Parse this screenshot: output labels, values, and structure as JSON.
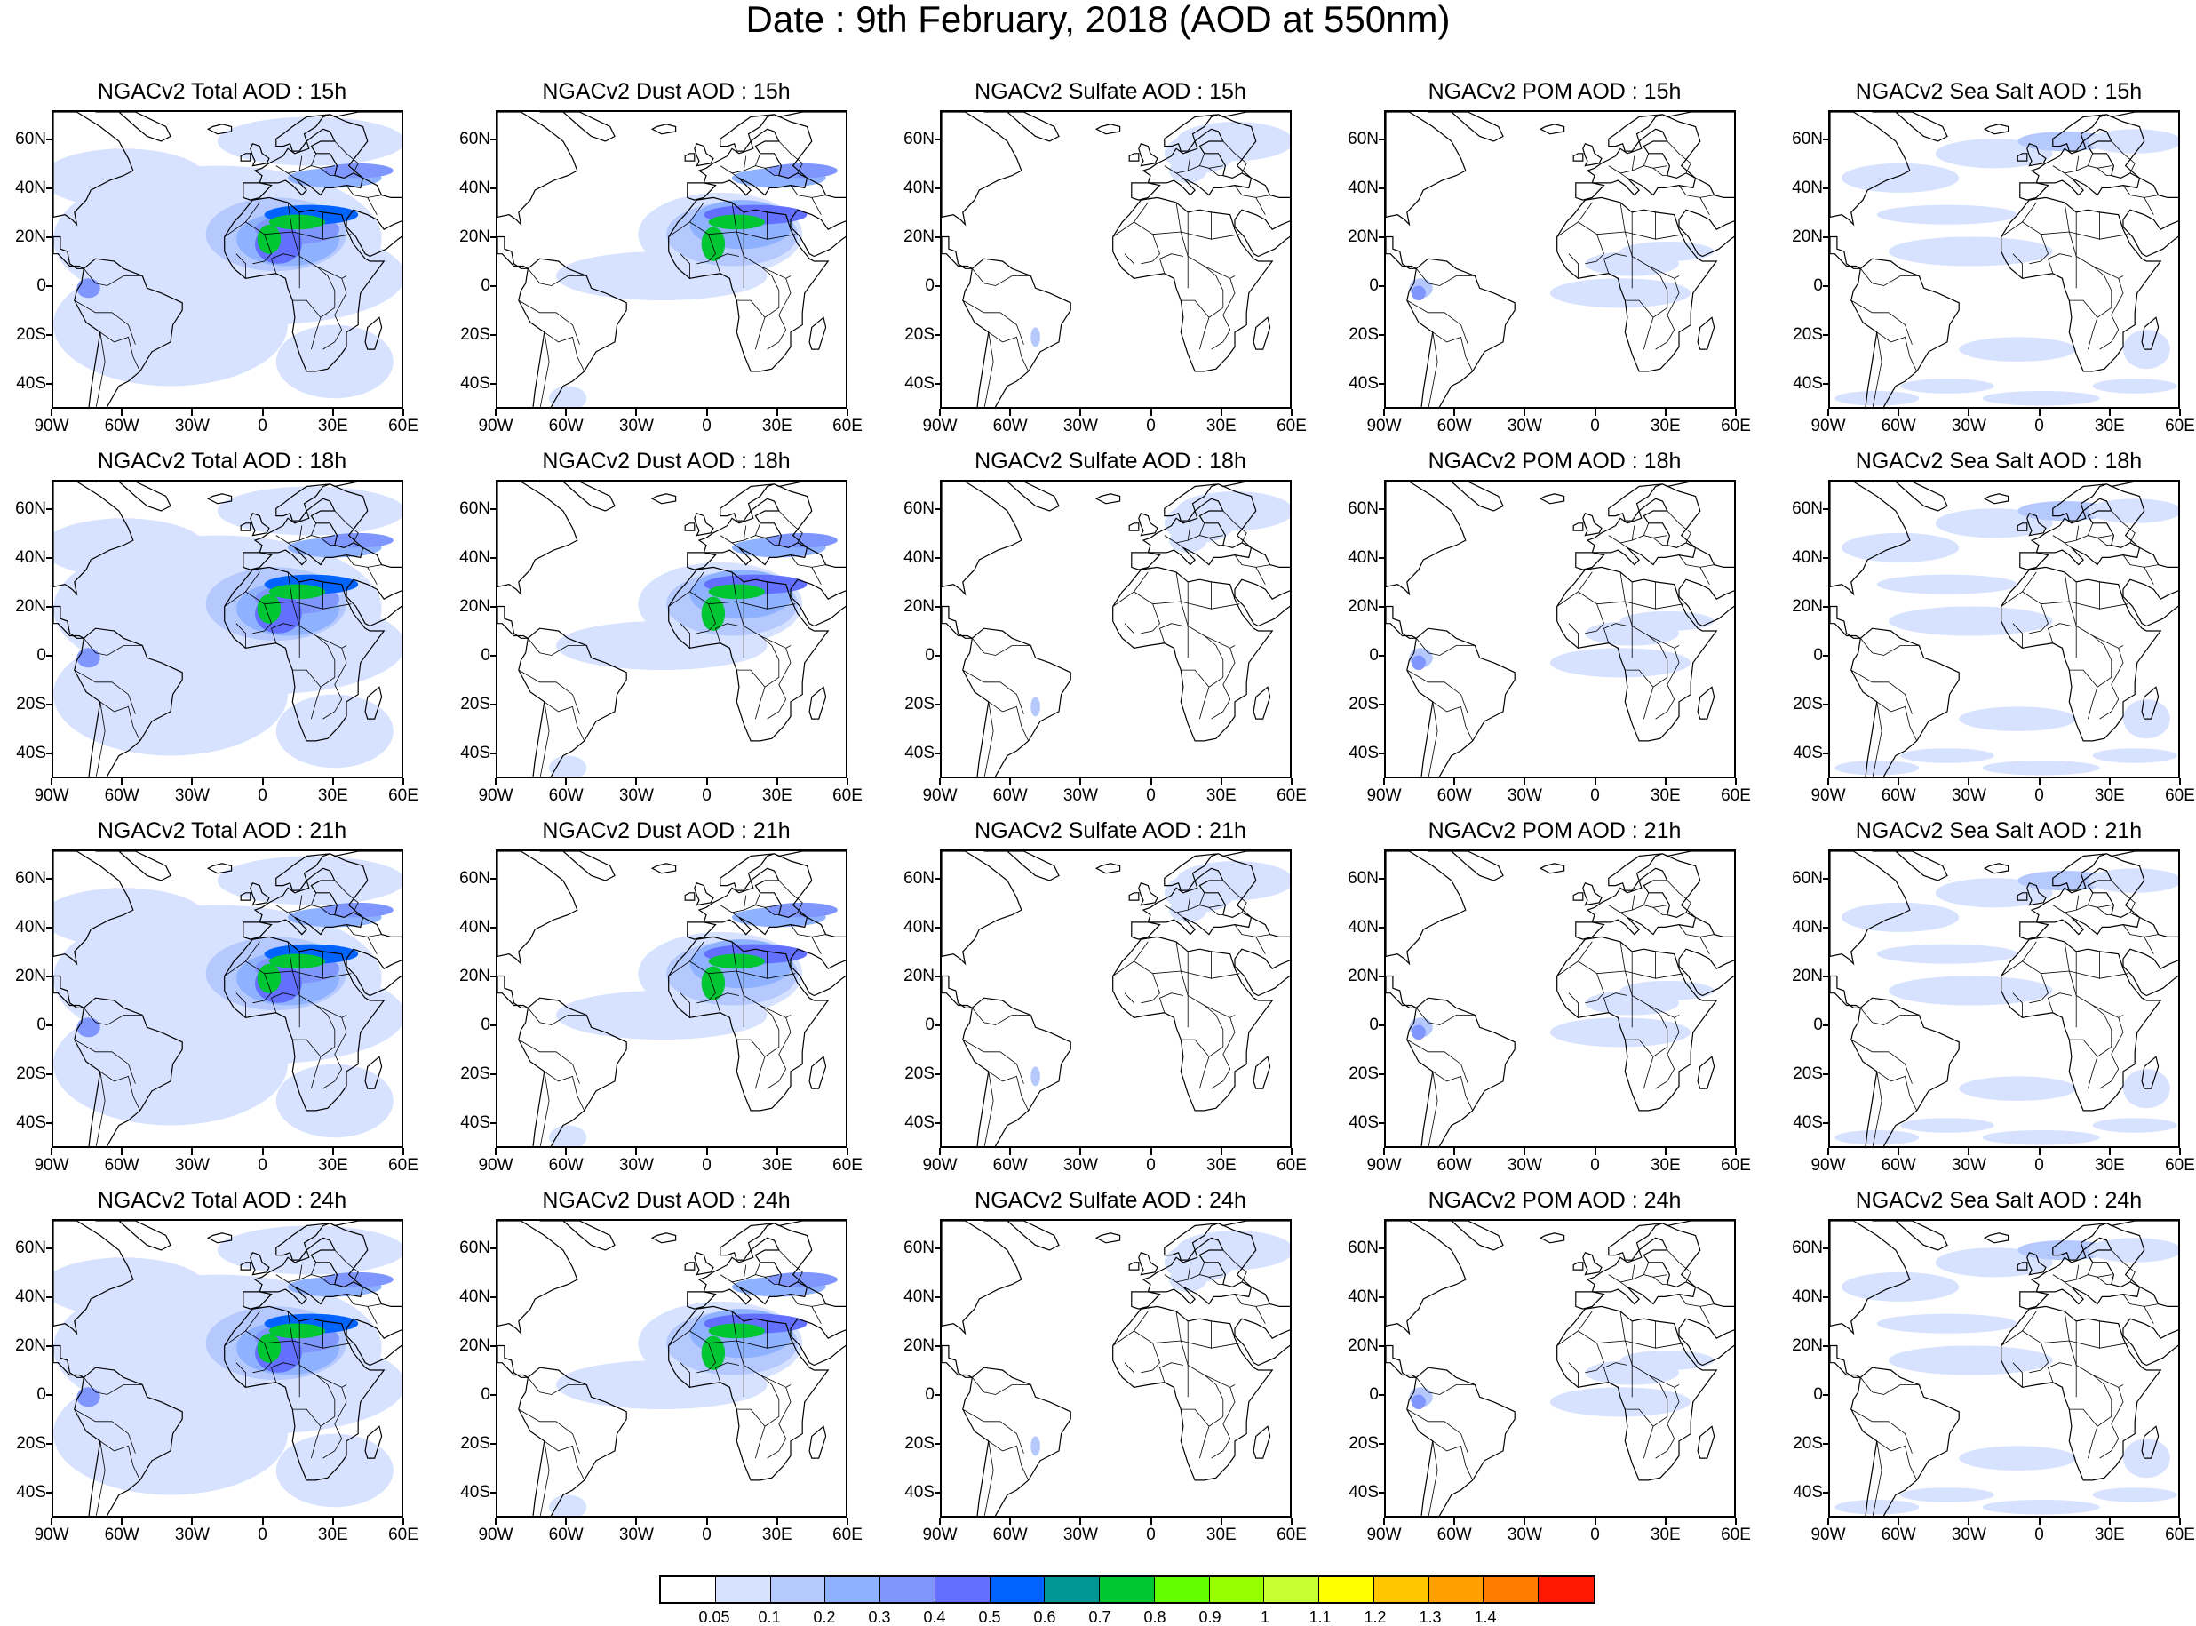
{
  "title": "Date : 9th February, 2018 (AOD at 550nm)",
  "panels": [
    [
      "NGACv2 Total AOD : 15h",
      "NGACv2 Dust AOD : 15h",
      "NGACv2 Sulfate AOD : 15h",
      "NGACv2 POM AOD : 15h",
      "NGACv2 Sea Salt AOD : 15h"
    ],
    [
      "NGACv2 Total AOD : 18h",
      "NGACv2 Dust AOD : 18h",
      "NGACv2 Sulfate AOD : 18h",
      "NGACv2 POM AOD : 18h",
      "NGACv2 Sea Salt AOD : 18h"
    ],
    [
      "NGACv2 Total AOD : 21h",
      "NGACv2 Dust AOD : 21h",
      "NGACv2 Sulfate AOD : 21h",
      "NGACv2 POM AOD : 21h",
      "NGACv2 Sea Salt AOD : 21h"
    ],
    [
      "NGACv2 Total AOD : 24h",
      "NGACv2 Dust AOD : 24h",
      "NGACv2 Sulfate AOD : 24h",
      "NGACv2 POM AOD : 24h",
      "NGACv2 Sea Salt  AOD : 24h"
    ]
  ],
  "lat_labels": [
    "60N",
    "40N",
    "20N",
    "0",
    "20S",
    "40S"
  ],
  "lon_labels": [
    "90W",
    "60W",
    "30W",
    "0",
    "30E",
    "60E"
  ],
  "colorbar": {
    "labels": [
      "0.05",
      "0.1",
      "0.2",
      "0.3",
      "0.4",
      "0.5",
      "0.6",
      "0.7",
      "0.8",
      "0.9",
      "1",
      "1.1",
      "1.2",
      "1.3",
      "1.4"
    ],
    "colors": [
      "#ffffff",
      "#d6e2ff",
      "#b5c9ff",
      "#8eb2ff",
      "#7f96ff",
      "#6370ff",
      "#0063ff",
      "#009696",
      "#00c633",
      "#63ff00",
      "#96ff00",
      "#c6ff33",
      "#ffff00",
      "#ffc600",
      "#ffa000",
      "#ff7c00",
      "#ff1900"
    ]
  },
  "colors": {
    "land_outline": "#000000",
    "background": "#ffffff"
  }
}
